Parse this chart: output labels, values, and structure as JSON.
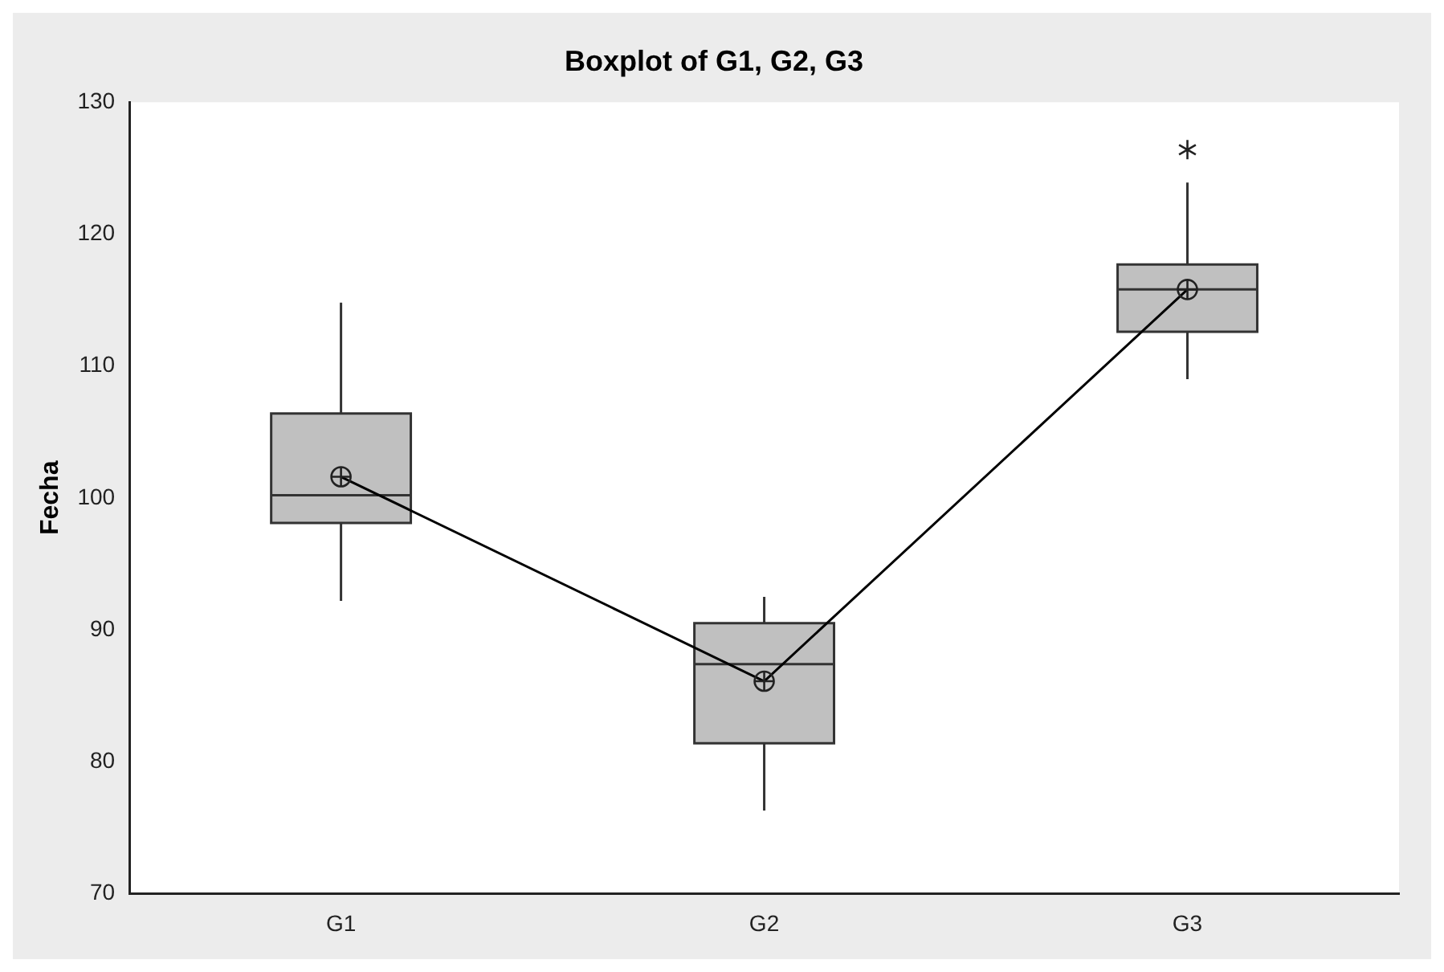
{
  "chart_data": {
    "type": "box",
    "title": "Boxplot of G1, G2, G3",
    "ylabel": "Fecha",
    "categories": [
      "G1",
      "G2",
      "G3"
    ],
    "color": "#c0c0c0",
    "ylim": [
      70,
      130
    ],
    "yticks": [
      70,
      80,
      90,
      100,
      110,
      120,
      130
    ],
    "grid": false,
    "boxes": [
      {
        "low": 92.2,
        "q1": 98.1,
        "median": 100.2,
        "q3": 106.4,
        "high": 114.8,
        "mean": 101.6
      },
      {
        "low": 76.3,
        "q1": 81.4,
        "median": 87.4,
        "q3": 90.5,
        "high": 92.5,
        "mean": 86.1
      },
      {
        "low": 109.0,
        "q1": 112.6,
        "median": 115.8,
        "q3": 117.7,
        "high": 123.9,
        "mean": 115.8,
        "outliers": [
          126.4
        ]
      }
    ],
    "series": [
      {
        "type": "line",
        "color": "#000000",
        "values": [
          101.6,
          86.1,
          115.8
        ]
      }
    ]
  }
}
